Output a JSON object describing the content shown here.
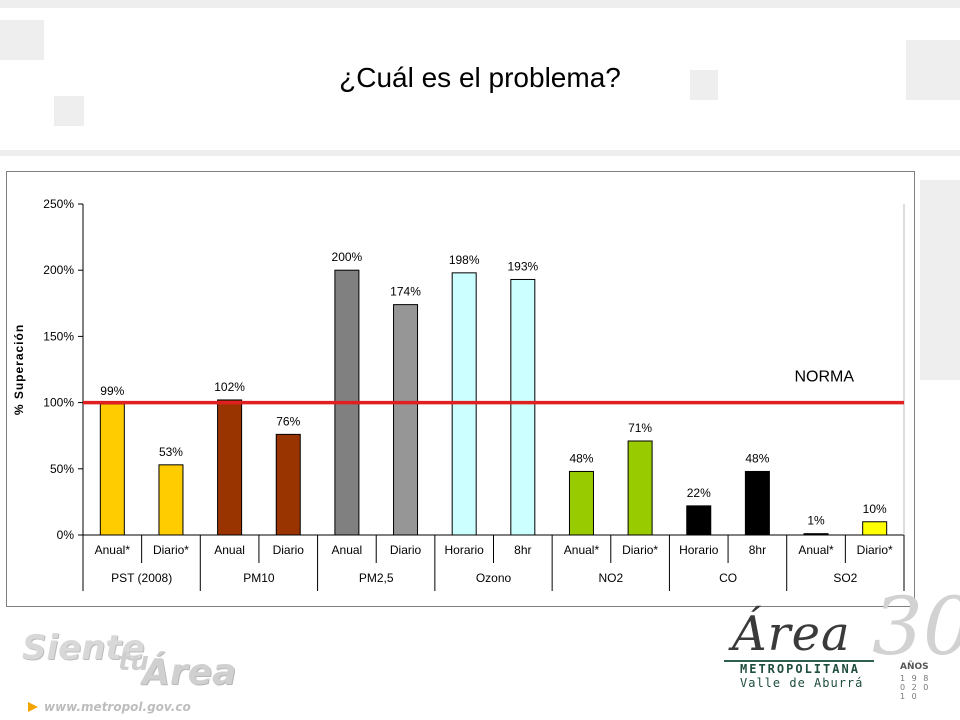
{
  "slide": {
    "title": "¿Cuál es el problema?"
  },
  "chart_data": {
    "type": "bar",
    "title": "",
    "xlabel": "",
    "ylabel": "% Superación",
    "ylim": [
      0,
      250
    ],
    "yticks": [
      0,
      50,
      100,
      150,
      200,
      250
    ],
    "ytick_labels": [
      "0%",
      "50%",
      "100%",
      "150%",
      "200%",
      "250%"
    ],
    "grid": false,
    "legend": "none",
    "reference_line": {
      "value": 100,
      "label": "NORMA",
      "color": "#e02020"
    },
    "groups": [
      {
        "name": "PST (2008)",
        "bars": [
          {
            "label": "Anual*",
            "value": 99,
            "value_label": "99%",
            "color": "#ffcc00"
          },
          {
            "label": "Diario*",
            "value": 53,
            "value_label": "53%",
            "color": "#ffcc00"
          }
        ]
      },
      {
        "name": "PM10",
        "bars": [
          {
            "label": "Anual",
            "value": 102,
            "value_label": "102%",
            "color": "#993300"
          },
          {
            "label": "Diario",
            "value": 76,
            "value_label": "76%",
            "color": "#993300"
          }
        ]
      },
      {
        "name": "PM2,5",
        "bars": [
          {
            "label": "Anual",
            "value": 200,
            "value_label": "200%",
            "color": "#808080"
          },
          {
            "label": "Diario",
            "value": 174,
            "value_label": "174%",
            "color": "#969696"
          }
        ]
      },
      {
        "name": "Ozono",
        "bars": [
          {
            "label": "Horario",
            "value": 198,
            "value_label": "198%",
            "color": "#ccffff"
          },
          {
            "label": "8hr",
            "value": 193,
            "value_label": "193%",
            "color": "#ccffff"
          }
        ]
      },
      {
        "name": "NO2",
        "bars": [
          {
            "label": "Anual*",
            "value": 48,
            "value_label": "48%",
            "color": "#99cc00"
          },
          {
            "label": "Diario*",
            "value": 71,
            "value_label": "71%",
            "color": "#99cc00"
          }
        ]
      },
      {
        "name": "CO",
        "bars": [
          {
            "label": "Horario",
            "value": 22,
            "value_label": "22%",
            "color": "#000000"
          },
          {
            "label": "8hr",
            "value": 48,
            "value_label": "48%",
            "color": "#000000"
          }
        ]
      },
      {
        "name": "SO2",
        "bars": [
          {
            "label": "Anual*",
            "value": 1,
            "value_label": "1%",
            "color": "#000000"
          },
          {
            "label": "Diario*",
            "value": 10,
            "value_label": "10%",
            "color": "#ffff00"
          }
        ]
      }
    ]
  },
  "footer": {
    "brand_siente": "Siente",
    "brand_tu": "tu",
    "brand_area": "Área",
    "url": "www.metropol.gov.co"
  },
  "logo": {
    "word": "Área",
    "number": "30",
    "line1": "METROPOLITANA",
    "line2": "Valle de Aburrá",
    "anos": "AÑOS",
    "years": "1 9 8 0 2 0 1 0"
  }
}
